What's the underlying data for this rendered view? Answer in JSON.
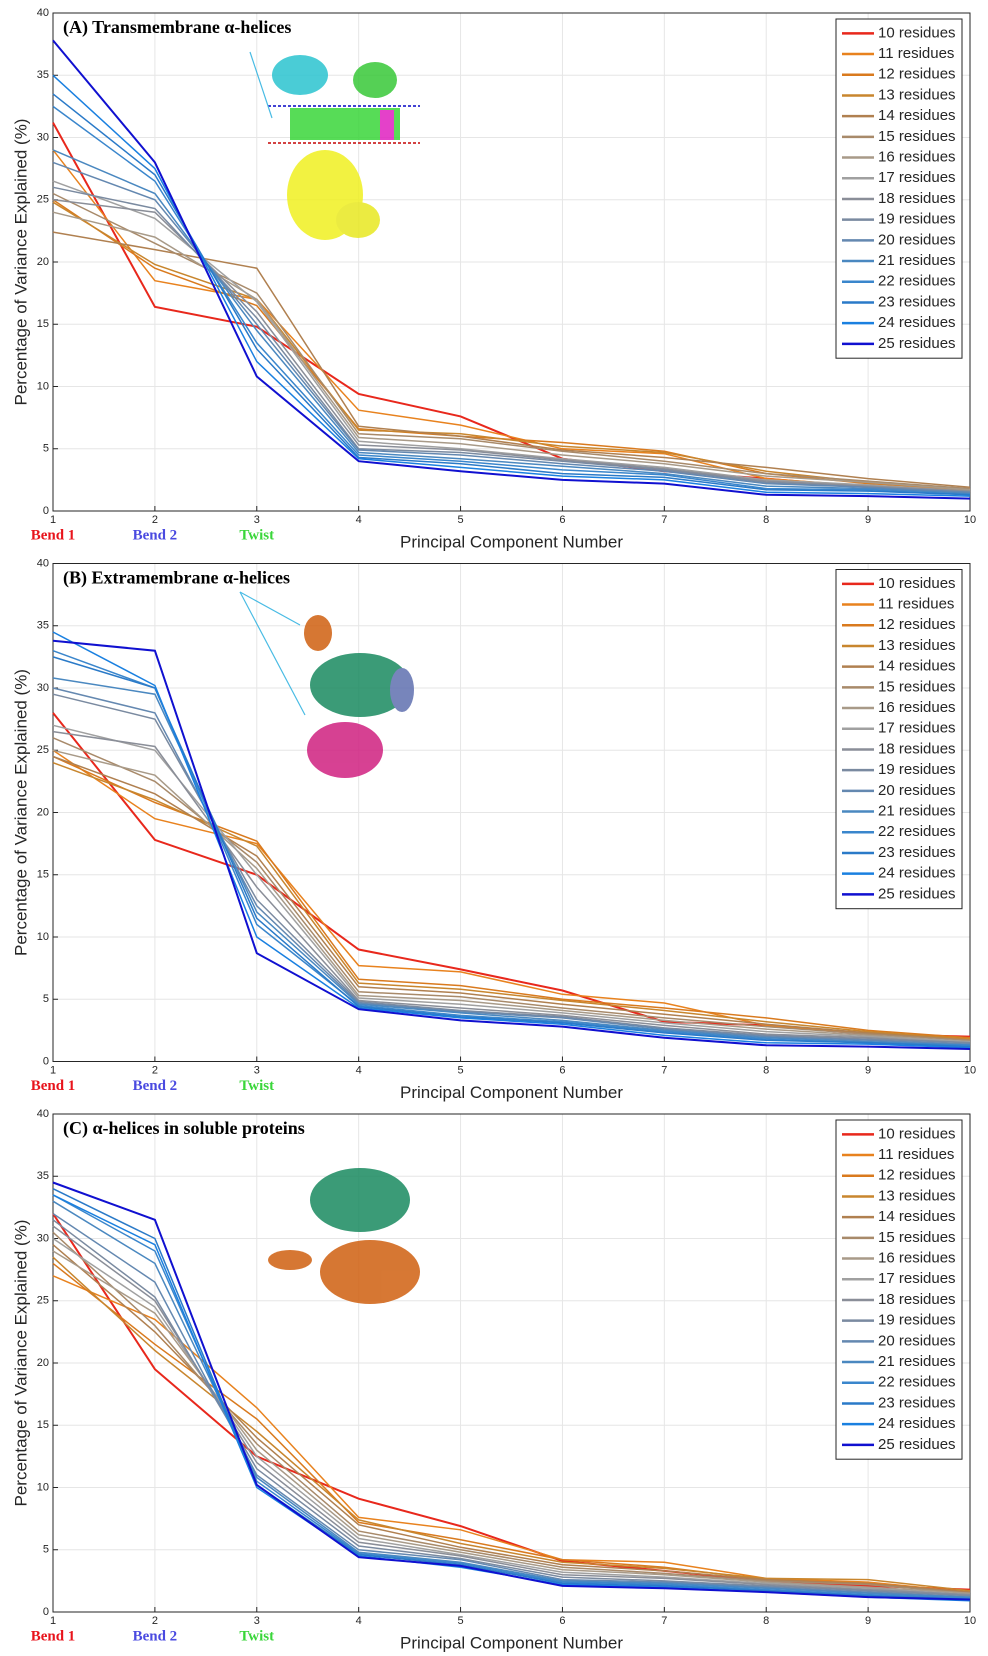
{
  "chart_data": [
    {
      "type": "line",
      "title": "(A) Transmembrane α-helices",
      "x_label": "Principal Component Number",
      "y_label": "Percentage of Variance Explained (%)",
      "x": [
        1,
        2,
        3,
        4,
        5,
        6,
        7,
        8,
        9,
        10
      ],
      "xlim": [
        1,
        10
      ],
      "ylim": [
        0,
        40
      ],
      "xticks": [
        1,
        2,
        3,
        4,
        5,
        6,
        7,
        8,
        9,
        10
      ],
      "yticks": [
        0,
        5,
        10,
        15,
        20,
        25,
        30,
        35,
        40
      ],
      "grid": true,
      "legend": "upper right",
      "annotations": [
        {
          "text": "Bend 1",
          "x": 1,
          "color": "#e8141c"
        },
        {
          "text": "Bend 2",
          "x": 2,
          "color": "#4a4ae0"
        },
        {
          "text": "Twist",
          "x": 3,
          "color": "#3ad63a"
        }
      ],
      "series": [
        {
          "name": "10 residues",
          "color": "#e8281c",
          "values": [
            31.2,
            16.4,
            14.8,
            9.4,
            7.6,
            4.2,
            3.2,
            2.6,
            1.9,
            1.5
          ]
        },
        {
          "name": "11 residues",
          "color": "#e8821e",
          "values": [
            29,
            18.5,
            17,
            8.1,
            6.9,
            5,
            4.6,
            2.6,
            2,
            1.7
          ]
        },
        {
          "name": "12 residues",
          "color": "#d97a1e",
          "values": [
            25,
            19.5,
            16.5,
            6.6,
            6,
            5.5,
            4.8,
            3,
            2.2,
            1.7
          ]
        },
        {
          "name": "13 residues",
          "color": "#c8862e",
          "values": [
            24.8,
            19.8,
            17,
            6.5,
            6.2,
            5.2,
            4.7,
            3.2,
            2.3,
            1.8
          ]
        },
        {
          "name": "14 residues",
          "color": "#b08050",
          "values": [
            22.4,
            21,
            19.5,
            6.8,
            6,
            4.9,
            4.3,
            3.5,
            2.6,
            1.9
          ]
        },
        {
          "name": "15 residues",
          "color": "#a88a6a",
          "values": [
            25.5,
            21.5,
            17.5,
            6.2,
            5.8,
            4.8,
            4,
            3,
            2.4,
            1.8
          ]
        },
        {
          "name": "16 residues",
          "color": "#a89a88",
          "values": [
            24,
            22,
            17,
            5.9,
            5.4,
            4.5,
            3.8,
            2.8,
            2.3,
            1.7
          ]
        },
        {
          "name": "17 residues",
          "color": "#a0a0a0",
          "values": [
            26.5,
            23.5,
            16.8,
            5.6,
            5,
            4.2,
            3.5,
            2.5,
            2.1,
            1.6
          ]
        },
        {
          "name": "18 residues",
          "color": "#8a8e98",
          "values": [
            25,
            24,
            16,
            5.3,
            4.9,
            4.1,
            3.4,
            2.4,
            2,
            1.6
          ]
        },
        {
          "name": "19 residues",
          "color": "#7a8aa0",
          "values": [
            26,
            24.3,
            15.5,
            5,
            4.7,
            4,
            3.3,
            2.3,
            1.9,
            1.5
          ]
        },
        {
          "name": "20 residues",
          "color": "#6488b0",
          "values": [
            28,
            25,
            15,
            4.9,
            4.5,
            3.8,
            3.2,
            2.2,
            1.9,
            1.5
          ]
        },
        {
          "name": "21 residues",
          "color": "#4a88c0",
          "values": [
            29,
            25.5,
            14.5,
            4.7,
            4.2,
            3.6,
            3,
            2,
            1.8,
            1.4
          ]
        },
        {
          "name": "22 residues",
          "color": "#3a86cc",
          "values": [
            32.5,
            26.5,
            13.5,
            4.5,
            4,
            3.3,
            2.9,
            1.8,
            1.7,
            1.3
          ]
        },
        {
          "name": "23 residues",
          "color": "#2a7ac8",
          "values": [
            33.5,
            27,
            13,
            4.3,
            3.8,
            3,
            2.7,
            1.7,
            1.6,
            1.3
          ]
        },
        {
          "name": "24 residues",
          "color": "#1a80e0",
          "values": [
            35,
            27.5,
            12,
            4.2,
            3.5,
            2.8,
            2.5,
            1.5,
            1.4,
            1.2
          ]
        },
        {
          "name": "25 residues",
          "color": "#1010d0",
          "values": [
            37.8,
            28,
            10.8,
            4,
            3.2,
            2.5,
            2.2,
            1.3,
            1.2,
            1
          ]
        }
      ]
    },
    {
      "type": "line",
      "title": "(B) Extramembrane α-helices",
      "x_label": "Principal Component Number",
      "y_label": "Percentage of Variance Explained (%)",
      "x": [
        1,
        2,
        3,
        4,
        5,
        6,
        7,
        8,
        9,
        10
      ],
      "xlim": [
        1,
        10
      ],
      "ylim": [
        0,
        40
      ],
      "xticks": [
        1,
        2,
        3,
        4,
        5,
        6,
        7,
        8,
        9,
        10
      ],
      "yticks": [
        0,
        5,
        10,
        15,
        20,
        25,
        30,
        35,
        40
      ],
      "grid": true,
      "legend": "upper right",
      "annotations": [
        {
          "text": "Bend 1",
          "x": 1,
          "color": "#e8141c"
        },
        {
          "text": "Bend 2",
          "x": 2,
          "color": "#4a4ae0"
        },
        {
          "text": "Twist",
          "x": 3,
          "color": "#3ad63a"
        }
      ],
      "series": [
        {
          "name": "10 residues",
          "color": "#e8281c",
          "values": [
            28,
            17.8,
            15,
            9,
            7.4,
            5.7,
            3.2,
            2.9,
            2.2,
            2
          ]
        },
        {
          "name": "11 residues",
          "color": "#e8821e",
          "values": [
            25,
            19.5,
            17.5,
            7.7,
            7.2,
            5.4,
            4.7,
            2.9,
            2.3,
            1.8
          ]
        },
        {
          "name": "12 residues",
          "color": "#d97a1e",
          "values": [
            24.5,
            20.8,
            17.7,
            6.6,
            6.1,
            5,
            4.3,
            3.5,
            2.5,
            1.9
          ]
        },
        {
          "name": "13 residues",
          "color": "#c8862e",
          "values": [
            24,
            21,
            17.3,
            6.3,
            5.8,
            4.9,
            4.1,
            3.2,
            2.4,
            1.8
          ]
        },
        {
          "name": "14 residues",
          "color": "#b08050",
          "values": [
            24.5,
            21.5,
            16.5,
            6,
            5.5,
            4.6,
            3.8,
            3,
            2.3,
            1.7
          ]
        },
        {
          "name": "15 residues",
          "color": "#a88a6a",
          "values": [
            26,
            22.5,
            16,
            5.6,
            5.2,
            4.3,
            3.5,
            2.8,
            2.2,
            1.7
          ]
        },
        {
          "name": "16 residues",
          "color": "#a89a88",
          "values": [
            25,
            23,
            15.5,
            5.3,
            4.9,
            4.1,
            3.3,
            2.6,
            2.1,
            1.6
          ]
        },
        {
          "name": "17 residues",
          "color": "#a0a0a0",
          "values": [
            27,
            25,
            15,
            5.1,
            4.6,
            3.9,
            3.1,
            2.4,
            2,
            1.6
          ]
        },
        {
          "name": "18 residues",
          "color": "#8a8e98",
          "values": [
            26.5,
            25.3,
            14,
            4.9,
            4.3,
            3.7,
            2.9,
            2.2,
            1.9,
            1.5
          ]
        },
        {
          "name": "19 residues",
          "color": "#7a8aa0",
          "values": [
            29.5,
            27.5,
            13,
            4.8,
            4.1,
            3.6,
            2.7,
            2.1,
            1.8,
            1.5
          ]
        },
        {
          "name": "20 residues",
          "color": "#6488b0",
          "values": [
            30,
            28,
            12.5,
            4.7,
            4,
            3.5,
            2.6,
            2,
            1.7,
            1.4
          ]
        },
        {
          "name": "21 residues",
          "color": "#4a88c0",
          "values": [
            30.8,
            29.5,
            12,
            4.6,
            3.9,
            3.3,
            2.5,
            1.9,
            1.6,
            1.3
          ]
        },
        {
          "name": "22 residues",
          "color": "#3a86cc",
          "values": [
            33,
            30,
            11,
            4.5,
            3.7,
            3.2,
            2.4,
            1.8,
            1.5,
            1.3
          ]
        },
        {
          "name": "23 residues",
          "color": "#2a7ac8",
          "values": [
            32.5,
            30,
            11.5,
            4.4,
            3.6,
            3.1,
            2.3,
            1.7,
            1.5,
            1.2
          ]
        },
        {
          "name": "24 residues",
          "color": "#1a80e0",
          "values": [
            34.5,
            30.2,
            10,
            4.3,
            3.5,
            3,
            2.1,
            1.5,
            1.4,
            1.1
          ]
        },
        {
          "name": "25 residues",
          "color": "#1010d0",
          "values": [
            33.8,
            33,
            8.7,
            4.2,
            3.3,
            2.8,
            1.9,
            1.3,
            1.2,
            1
          ]
        }
      ]
    },
    {
      "type": "line",
      "title": "(C) α-helices in soluble proteins",
      "x_label": "Principal Component Number",
      "y_label": "Percentage of Variance Explained (%)",
      "x": [
        1,
        2,
        3,
        4,
        5,
        6,
        7,
        8,
        9,
        10
      ],
      "xlim": [
        1,
        10
      ],
      "ylim": [
        0,
        40
      ],
      "xticks": [
        1,
        2,
        3,
        4,
        5,
        6,
        7,
        8,
        9,
        10
      ],
      "yticks": [
        0,
        5,
        10,
        15,
        20,
        25,
        30,
        35,
        40
      ],
      "grid": true,
      "legend": "upper right",
      "annotations": [
        {
          "text": "Bend 1",
          "x": 1,
          "color": "#e8141c"
        },
        {
          "text": "Bend 2",
          "x": 2,
          "color": "#4a4ae0"
        },
        {
          "text": "Twist",
          "x": 3,
          "color": "#3ad63a"
        }
      ],
      "series": [
        {
          "name": "10 residues",
          "color": "#e8281c",
          "values": [
            32,
            19.5,
            12.5,
            9.1,
            6.9,
            4.1,
            3.3,
            2.5,
            2.1,
            1.8
          ]
        },
        {
          "name": "11 residues",
          "color": "#e8821e",
          "values": [
            27,
            23.5,
            16.4,
            7.6,
            6.6,
            4.2,
            4,
            2.7,
            2.4,
            1.6
          ]
        },
        {
          "name": "12 residues",
          "color": "#d97a1e",
          "values": [
            28,
            21.5,
            15.5,
            7.2,
            5.8,
            4.2,
            3.6,
            2.6,
            2.3,
            1.6
          ]
        },
        {
          "name": "13 residues",
          "color": "#c8862e",
          "values": [
            28.5,
            21,
            14.5,
            7.4,
            5.5,
            4,
            3.5,
            2.7,
            2.6,
            1.7
          ]
        },
        {
          "name": "14 residues",
          "color": "#b08050",
          "values": [
            29.5,
            22.5,
            14,
            7,
            5.2,
            3.8,
            3.3,
            2.6,
            2.3,
            1.6
          ]
        },
        {
          "name": "15 residues",
          "color": "#a88a6a",
          "values": [
            30.5,
            23,
            13.5,
            6.5,
            5,
            3.6,
            3.1,
            2.5,
            2.2,
            1.5
          ]
        },
        {
          "name": "16 residues",
          "color": "#a89a88",
          "values": [
            29,
            24,
            13,
            6.2,
            4.8,
            3.4,
            3,
            2.4,
            2,
            1.5
          ]
        },
        {
          "name": "17 residues",
          "color": "#a0a0a0",
          "values": [
            30,
            24.5,
            12.5,
            5.9,
            4.6,
            3.2,
            2.8,
            2.3,
            1.9,
            1.4
          ]
        },
        {
          "name": "18 residues",
          "color": "#8a8e98",
          "values": [
            31,
            25,
            12,
            5.6,
            4.5,
            3,
            2.7,
            2.2,
            1.8,
            1.4
          ]
        },
        {
          "name": "19 residues",
          "color": "#7a8aa0",
          "values": [
            31.5,
            25.3,
            11.5,
            5.3,
            4.3,
            2.8,
            2.5,
            2.1,
            1.7,
            1.3
          ]
        },
        {
          "name": "20 residues",
          "color": "#6488b0",
          "values": [
            32,
            26.5,
            11,
            5,
            4.2,
            2.6,
            2.4,
            2,
            1.6,
            1.2
          ]
        },
        {
          "name": "21 residues",
          "color": "#4a88c0",
          "values": [
            33,
            28,
            10.8,
            4.8,
            4,
            2.5,
            2.3,
            1.9,
            1.5,
            1.2
          ]
        },
        {
          "name": "22 residues",
          "color": "#3a86cc",
          "values": [
            33.5,
            29,
            10.5,
            4.7,
            3.9,
            2.4,
            2.2,
            1.8,
            1.4,
            1.1
          ]
        },
        {
          "name": "23 residues",
          "color": "#2a7ac8",
          "values": [
            34,
            30,
            10.2,
            4.6,
            3.8,
            2.3,
            2.1,
            1.7,
            1.3,
            1
          ]
        },
        {
          "name": "24 residues",
          "color": "#1a80e0",
          "values": [
            33.5,
            29.5,
            10,
            4.5,
            3.6,
            2.2,
            2,
            1.6,
            1.2,
            0.9
          ]
        },
        {
          "name": "25 residues",
          "color": "#1010d0",
          "values": [
            34.5,
            31.5,
            10.2,
            4.4,
            3.7,
            2.1,
            1.9,
            1.6,
            1.2,
            1
          ]
        }
      ]
    }
  ]
}
